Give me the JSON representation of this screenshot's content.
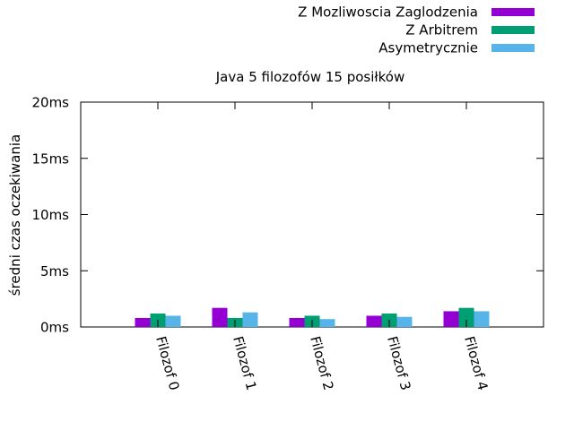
{
  "chart_data": {
    "type": "bar",
    "title": "Java 5 filozofów 15 posiłków",
    "xlabel": "",
    "ylabel": "średni czas oczekiwania",
    "ylim": [
      0,
      20
    ],
    "y_ticks": [
      0,
      5,
      10,
      15,
      20
    ],
    "y_tick_labels": [
      "0ms",
      "5ms",
      "10ms",
      "15ms",
      "20ms"
    ],
    "grid": false,
    "legend_position": "top-right",
    "categories": [
      "Filozof 0",
      "Filozof 1",
      "Filozof 2",
      "Filozof 3",
      "Filozof 4"
    ],
    "series": [
      {
        "name": "Z Mozliwoscia Zaglodzenia",
        "color": "#9400d3",
        "values": [
          0.8,
          1.7,
          0.8,
          1.0,
          1.4
        ]
      },
      {
        "name": "Z Arbitrem",
        "color": "#009e73",
        "values": [
          1.2,
          0.8,
          1.0,
          1.2,
          1.7
        ]
      },
      {
        "name": "Asymetrycznie",
        "color": "#56b4e9",
        "values": [
          1.0,
          1.3,
          0.7,
          0.9,
          1.4
        ]
      }
    ]
  }
}
